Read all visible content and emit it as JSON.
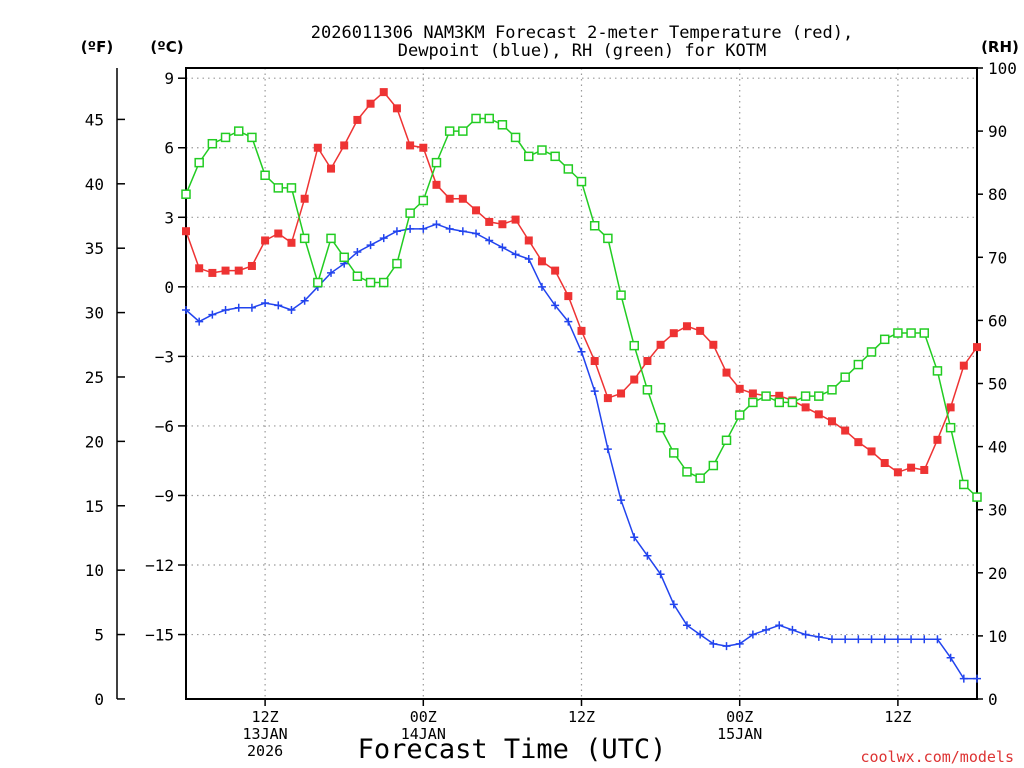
{
  "chart_data": {
    "type": "line",
    "title_line1": "2026011306 NAM3KM Forecast 2-meter Temperature (red),",
    "title_line2": "Dewpoint (blue), RH (green) for KOTM",
    "xlabel": "Forecast Time (UTC)",
    "unit_f": "(ºF)",
    "unit_c": "(ºC)",
    "unit_rh": "(RH)",
    "credit": "coolwx.com/models",
    "x_range_hours": [
      0,
      60
    ],
    "ylim_c": [
      -17.78,
      9.44
    ],
    "ylim_rh": [
      0,
      100
    ],
    "c_ticks": [
      9,
      6,
      3,
      0,
      -3,
      -6,
      -9,
      -12,
      -15
    ],
    "c_tick_labels": [
      "9",
      "6",
      "3",
      "0",
      "−3",
      "−6",
      "−9",
      "−12",
      "−15"
    ],
    "f_ticks": [
      45,
      40,
      35,
      30,
      25,
      20,
      15,
      10,
      5,
      0
    ],
    "rh_ticks": [
      100,
      90,
      80,
      70,
      60,
      50,
      40,
      30,
      20,
      10,
      0
    ],
    "x_ticks": [
      {
        "hour": 6,
        "lines": [
          "12Z",
          "13JAN",
          "2026"
        ]
      },
      {
        "hour": 18,
        "lines": [
          "00Z",
          "14JAN"
        ]
      },
      {
        "hour": 30,
        "lines": [
          "12Z"
        ]
      },
      {
        "hour": 42,
        "lines": [
          "00Z",
          "15JAN"
        ]
      },
      {
        "hour": 54,
        "lines": [
          "12Z"
        ]
      }
    ],
    "series": [
      {
        "name": "Temperature",
        "unit": "C",
        "color": "#ee3333",
        "marker": "filled-square",
        "values": [
          2.4,
          0.8,
          0.6,
          0.7,
          0.7,
          0.9,
          2.0,
          2.3,
          1.9,
          3.8,
          6.0,
          5.1,
          6.1,
          7.2,
          7.9,
          8.4,
          7.7,
          6.1,
          6.0,
          4.4,
          3.8,
          3.8,
          3.3,
          2.8,
          2.7,
          2.9,
          2.0,
          1.1,
          0.7,
          -0.4,
          -1.9,
          -3.2,
          -4.8,
          -4.6,
          -4.0,
          -3.2,
          -2.5,
          -2.0,
          -1.7,
          -1.9,
          -2.5,
          -3.7,
          -4.4,
          -4.6,
          -4.7,
          -4.7,
          -4.9,
          -5.2,
          -5.5,
          -5.8,
          -6.2,
          -6.7,
          -7.1,
          -7.6,
          -8.0,
          -7.8,
          -7.9,
          -6.6,
          -5.2,
          -3.4,
          -2.6
        ]
      },
      {
        "name": "Dewpoint",
        "unit": "C",
        "color": "#2244ee",
        "marker": "plus",
        "values": [
          -1.0,
          -1.5,
          -1.2,
          -1.0,
          -0.9,
          -0.9,
          -0.7,
          -0.8,
          -1.0,
          -0.6,
          0.0,
          0.6,
          1.0,
          1.5,
          1.8,
          2.1,
          2.4,
          2.5,
          2.5,
          2.7,
          2.5,
          2.4,
          2.3,
          2.0,
          1.7,
          1.4,
          1.2,
          0.0,
          -0.8,
          -1.5,
          -2.8,
          -4.5,
          -7.0,
          -9.2,
          -10.8,
          -11.6,
          -12.4,
          -13.7,
          -14.6,
          -15.0,
          -15.4,
          -15.5,
          -15.4,
          -15.0,
          -14.8,
          -14.6,
          -14.8,
          -15.0,
          -15.1,
          -15.2,
          -15.2,
          -15.2,
          -15.2,
          -15.2,
          -15.2,
          -15.2,
          -15.2,
          -15.2,
          -16.0,
          -16.9,
          -16.9
        ]
      },
      {
        "name": "RH",
        "unit": "%",
        "color": "#22cc22",
        "marker": "open-square",
        "values": [
          80,
          85,
          88,
          89,
          90,
          89,
          83,
          81,
          81,
          73,
          66,
          73,
          70,
          67,
          66,
          66,
          69,
          77,
          79,
          85,
          90,
          90,
          92,
          92,
          91,
          89,
          86,
          87,
          86,
          84,
          82,
          75,
          73,
          64,
          56,
          49,
          43,
          39,
          36,
          35,
          37,
          41,
          45,
          47,
          48,
          47,
          47,
          48,
          48,
          49,
          51,
          53,
          55,
          57,
          58,
          58,
          58,
          52,
          43,
          34,
          32
        ]
      }
    ]
  }
}
